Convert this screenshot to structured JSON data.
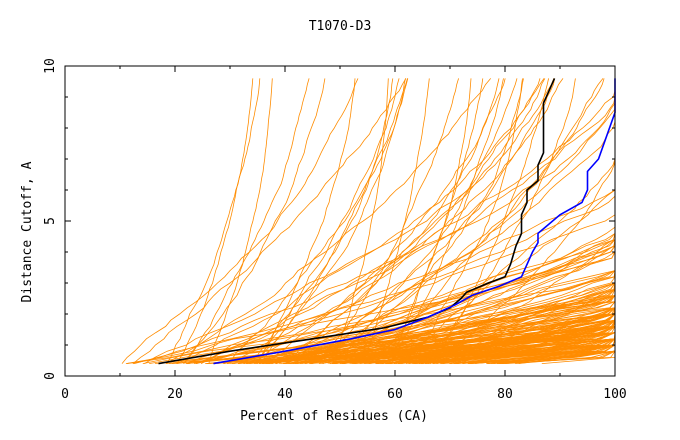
{
  "chart_data": {
    "type": "line",
    "title": "T1070-D3",
    "xlabel": "Percent of Residues (CA)",
    "ylabel": "Distance Cutoff, A",
    "xlim": [
      0,
      100
    ],
    "ylim": [
      0,
      10
    ],
    "x_ticks": [
      "0",
      "20",
      "40",
      "60",
      "80",
      "100"
    ],
    "y_ticks": [
      "0",
      "5",
      "10"
    ],
    "grid": false,
    "legend": "none",
    "colors": {
      "background_models": "#ff8c00",
      "black_model": "#000000",
      "blue_model": "#0000ff"
    },
    "highlight_series": [
      {
        "color": "#000000",
        "points": [
          [
            17,
            0.4
          ],
          [
            30,
            0.8
          ],
          [
            45,
            1.2
          ],
          [
            58,
            1.55
          ],
          [
            66,
            1.9
          ],
          [
            70,
            2.2
          ],
          [
            72,
            2.5
          ],
          [
            73,
            2.7
          ],
          [
            77,
            3.0
          ],
          [
            80,
            3.2
          ],
          [
            81,
            3.6
          ],
          [
            82,
            4.2
          ],
          [
            83,
            4.6
          ],
          [
            83,
            5.2
          ],
          [
            84,
            5.6
          ],
          [
            84,
            6.0
          ],
          [
            86,
            6.3
          ],
          [
            86,
            6.8
          ],
          [
            87,
            7.2
          ],
          [
            87,
            7.6
          ],
          [
            87,
            8.2
          ],
          [
            87,
            8.8
          ],
          [
            88,
            9.2
          ],
          [
            89,
            9.6
          ]
        ]
      },
      {
        "color": "#0000ff",
        "points": [
          [
            27,
            0.4
          ],
          [
            40,
            0.8
          ],
          [
            52,
            1.2
          ],
          [
            60,
            1.5
          ],
          [
            66,
            1.9
          ],
          [
            71,
            2.3
          ],
          [
            74,
            2.6
          ],
          [
            79,
            2.9
          ],
          [
            83,
            3.2
          ],
          [
            84,
            3.6
          ],
          [
            85,
            4.0
          ],
          [
            86,
            4.3
          ],
          [
            86,
            4.6
          ],
          [
            90,
            5.2
          ],
          [
            94,
            5.6
          ],
          [
            95,
            6.0
          ],
          [
            95,
            6.6
          ],
          [
            97,
            7.0
          ],
          [
            98,
            7.5
          ],
          [
            99,
            8.0
          ],
          [
            100,
            8.5
          ],
          [
            100,
            9.0
          ],
          [
            100,
            9.6
          ]
        ]
      }
    ],
    "background_series_count": 240,
    "background_x_at_0_4_range": [
      6,
      68
    ],
    "background_y_max": 9.6
  }
}
